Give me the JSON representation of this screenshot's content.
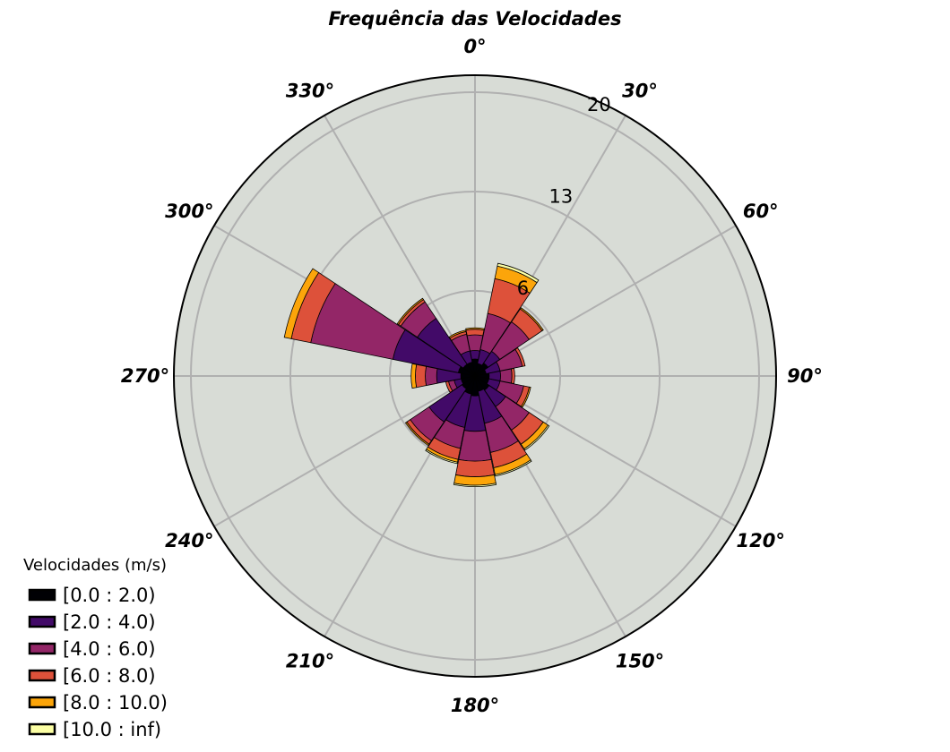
{
  "chart_data": {
    "type": "polar-bar",
    "subtype": "wind-rose",
    "title": "Frequência das Velocidades",
    "direction_labels": [
      "0°",
      "30°",
      "60°",
      "90°",
      "120°",
      "150°",
      "180°",
      "210°",
      "240°",
      "270°",
      "300°",
      "330°"
    ],
    "directions": [
      0,
      22.5,
      45,
      67.5,
      90,
      112.5,
      135,
      157.5,
      180,
      202.5,
      225,
      247.5,
      270,
      292.5,
      315,
      337.5
    ],
    "radial_ticks": [
      6,
      13,
      20
    ],
    "radial_tick_labels": [
      "6",
      "13",
      "20"
    ],
    "rlim": [
      0,
      21.2
    ],
    "grid": true,
    "legend_title": "Velocidades (m/s)",
    "legend_position": "lower-left",
    "series": [
      {
        "name": "[0.0 : 2.0)",
        "color": "#000004",
        "values": [
          1.2,
          0.9,
          1.1,
          0.8,
          1.0,
          1.0,
          1.2,
          1.1,
          1.4,
          1.3,
          1.1,
          1.0,
          1.0,
          1.2,
          1.0,
          1.0
        ]
      },
      {
        "name": "[2.0 : 4.0)",
        "color": "#420a68",
        "values": [
          0.6,
          1.0,
          1.0,
          1.0,
          0.8,
          0.8,
          1.4,
          2.3,
          2.5,
          2.4,
          2.8,
          0.5,
          1.7,
          4.7,
          3.9,
          0.8
        ]
      },
      {
        "name": "[4.0 : 6.0)",
        "color": "#932667",
        "values": [
          1.1,
          2.6,
          2.5,
          1.6,
          0.8,
          1.7,
          2.0,
          2.1,
          2.1,
          1.5,
          1.6,
          0.4,
          0.8,
          5.9,
          1.4,
          1.2
        ]
      },
      {
        "name": "[6.0 : 8.0)",
        "color": "#dd513a",
        "values": [
          0.4,
          2.5,
          1.1,
          0.2,
          0.2,
          0.4,
          1.2,
          1.1,
          1.1,
          0.8,
          0.3,
          0.2,
          0.7,
          1.4,
          0.2,
          0.2
        ]
      },
      {
        "name": "[8.0 : 10.0)",
        "color": "#fca50a",
        "values": [
          0.1,
          0.9,
          0.1,
          0.0,
          0.0,
          0.1,
          0.4,
          0.5,
          0.6,
          0.2,
          0.1,
          0.0,
          0.3,
          0.5,
          0.1,
          0.1
        ]
      },
      {
        "name": "[10.0 : inf)",
        "color": "#fcffa4",
        "values": [
          0.0,
          0.2,
          0.0,
          0.0,
          0.0,
          0.0,
          0.1,
          0.1,
          0.1,
          0.1,
          0.0,
          0.0,
          0.0,
          0.0,
          0.0,
          0.0
        ]
      }
    ]
  },
  "colors": {
    "plot_background": "#d8dcd6",
    "grid": "#b0b0b0",
    "outline": "#000000"
  }
}
